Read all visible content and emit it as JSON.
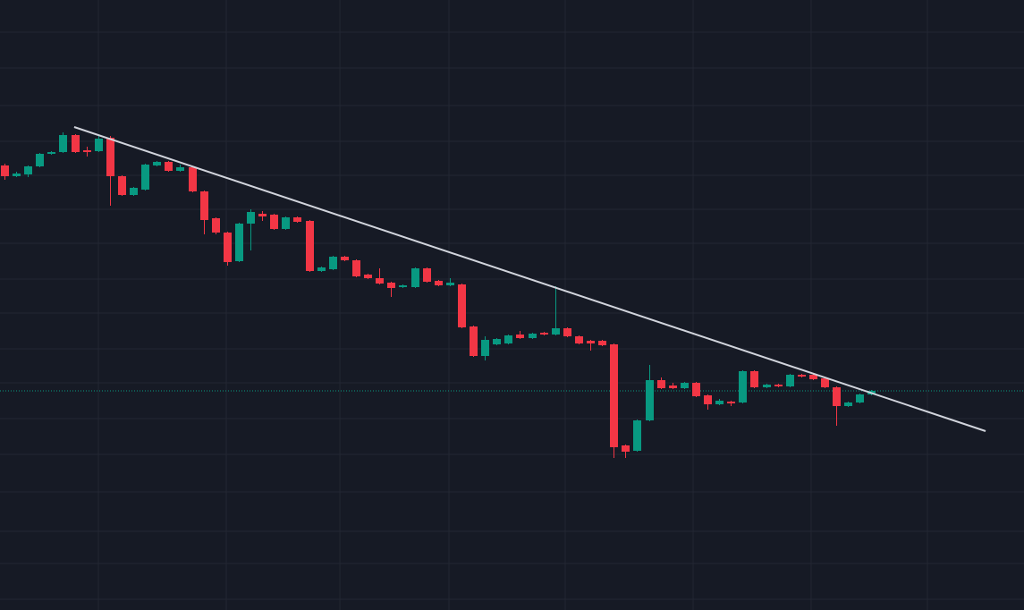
{
  "chart_data": {
    "type": "candlestick",
    "up_color": "#089981",
    "down_color": "#f23645",
    "grid": true,
    "grid_color": "#232733",
    "background": "#161a25",
    "xlim": [
      -0.38,
      87.02
    ],
    "ylim": [
      0,
      682
    ],
    "xticks": [
      8.02,
      18.93,
      28.63,
      37.94,
      47.86,
      58.78,
      68.85,
      78.78
    ],
    "yticks": [
      646,
      606,
      564,
      524,
      486,
      448,
      410,
      370,
      332,
      292,
      254,
      214,
      174,
      132,
      88,
      52,
      12
    ],
    "open": [
      497,
      485,
      487,
      496,
      510,
      512,
      531,
      514,
      513,
      528,
      485,
      464,
      470,
      497,
      501,
      491,
      495,
      468,
      438,
      422,
      390,
      432,
      443,
      442,
      426,
      439,
      435,
      379,
      381,
      395,
      391,
      375,
      371,
      366,
      361,
      361,
      382,
      368,
      363,
      364,
      317,
      284,
      297,
      298,
      308,
      304,
      310,
      308,
      315,
      306,
      301,
      301,
      297,
      184,
      178,
      212,
      257,
      251,
      248,
      254,
      240,
      230,
      233,
      232,
      267,
      249,
      252,
      250,
      263,
      263,
      259,
      249,
      228,
      232,
      241
    ],
    "high": [
      499,
      490,
      497,
      511,
      513,
      534,
      532,
      518,
      530,
      530,
      486,
      473,
      499,
      502,
      502,
      498,
      496,
      469,
      439,
      423,
      433,
      448,
      446,
      443,
      440,
      440,
      436,
      384,
      396,
      396,
      392,
      376,
      382,
      367,
      364,
      383,
      383,
      369,
      371,
      365,
      318,
      306,
      304,
      308,
      312,
      310,
      311,
      362,
      316,
      307,
      302,
      302,
      298,
      185,
      213,
      274,
      260,
      254,
      255,
      255,
      241,
      236,
      234,
      268,
      268,
      253,
      253,
      264,
      264,
      264,
      260,
      250,
      233,
      242,
      246
    ],
    "low": [
      481,
      484,
      484,
      495,
      509,
      511,
      511,
      507,
      512,
      452,
      463,
      463,
      469,
      496,
      490,
      490,
      467,
      420,
      420,
      385,
      389,
      402,
      435,
      425,
      425,
      433,
      378,
      378,
      380,
      390,
      372,
      370,
      364,
      350,
      360,
      360,
      366,
      362,
      362,
      315,
      283,
      279,
      296,
      297,
      303,
      303,
      307,
      307,
      305,
      297,
      290,
      295,
      170,
      170,
      177,
      211,
      247,
      247,
      247,
      238,
      224,
      229,
      228,
      231,
      248,
      248,
      249,
      249,
      260,
      257,
      248,
      206,
      227,
      231,
      240
    ],
    "close": [
      485,
      488,
      496,
      510,
      512,
      531,
      512,
      512,
      527,
      485,
      464,
      472,
      498,
      501,
      491,
      495,
      468,
      436,
      422,
      389,
      432,
      445,
      440,
      426,
      439,
      434,
      379,
      383,
      395,
      391,
      373,
      371,
      365,
      360,
      363,
      382,
      367,
      363,
      366,
      316,
      284,
      302,
      303,
      307,
      304,
      309,
      308,
      315,
      306,
      298,
      298,
      296,
      182,
      177,
      212,
      257,
      248,
      248,
      254,
      239,
      230,
      234,
      231,
      267,
      249,
      252,
      250,
      263,
      261,
      258,
      249,
      228,
      232,
      241,
      245
    ],
    "trendline": {
      "x": [
        5.95,
        83.74
      ],
      "y": [
        540,
        200
      ],
      "color": "#d1d4dc"
    },
    "last_price": {
      "value": 245,
      "color": "#089981"
    }
  }
}
